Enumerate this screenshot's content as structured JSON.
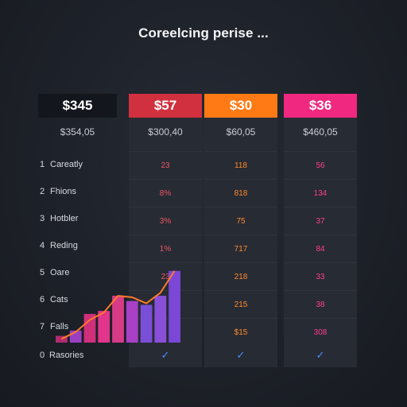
{
  "header": {
    "title": "Coreelcing perise ..."
  },
  "label_column": {
    "price": "$345",
    "sub_price": "$354,05"
  },
  "rows": [
    {
      "num": "1",
      "label": "Careatly"
    },
    {
      "num": "2",
      "label": "Fhions"
    },
    {
      "num": "3",
      "label": "Hotbler"
    },
    {
      "num": "4",
      "label": "Reding"
    },
    {
      "num": "5",
      "label": "Oare"
    },
    {
      "num": "6",
      "label": "Cats"
    },
    {
      "num": "7",
      "label": "Falls"
    },
    {
      "num": "0",
      "label": "Rasories"
    }
  ],
  "plans": [
    {
      "id": "red",
      "price": "$57",
      "sub_price": "$300,40",
      "color": "#d1303f",
      "values": [
        "23",
        "8%",
        "3%",
        "1%",
        "23",
        "",
        ""
      ],
      "check": "✓"
    },
    {
      "id": "orange",
      "price": "$30",
      "sub_price": "$60,05",
      "color": "#ff7a14",
      "values": [
        "118",
        "818",
        "75",
        "717",
        "218",
        "215",
        "$15"
      ],
      "check": "✓"
    },
    {
      "id": "pink",
      "price": "$36",
      "sub_price": "$460,05",
      "color": "#f1287f",
      "values": [
        "56",
        "134",
        "37",
        "84",
        "33",
        "38",
        "308"
      ],
      "check": "✓"
    }
  ],
  "chart_data": {
    "type": "bar",
    "values": [
      9,
      16,
      38,
      42,
      62,
      55,
      50,
      62,
      95
    ],
    "line": [
      5,
      14,
      30,
      40,
      62,
      60,
      52,
      66,
      95
    ],
    "colors": [
      "#b12b6e",
      "#9a3fc1",
      "#d02f7c",
      "#e0358a",
      "#d73b86",
      "#a940c6",
      "#7a4ed6",
      "#8a4fd8",
      "#7a47d6"
    ],
    "line_color": "#ff7a2a"
  }
}
